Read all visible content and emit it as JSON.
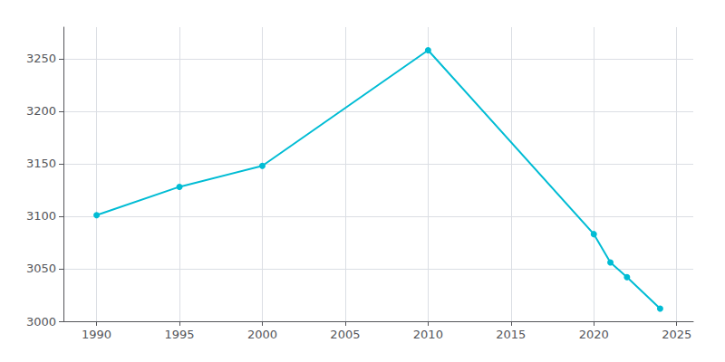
{
  "chart_data": {
    "type": "line",
    "x": [
      1990,
      1995,
      2000,
      2010,
      2020,
      2021,
      2022,
      2024
    ],
    "values": [
      3101,
      3128,
      3148,
      3258,
      3083,
      3056,
      3042,
      3012
    ],
    "color": "#00bcd4",
    "marker": "circle",
    "xlim": [
      1988,
      2026
    ],
    "ylim": [
      3000,
      3280
    ],
    "xticks": [
      1990,
      1995,
      2000,
      2005,
      2010,
      2015,
      2020,
      2025
    ],
    "yticks": [
      3000,
      3050,
      3100,
      3150,
      3200,
      3250
    ],
    "grid": true
  }
}
